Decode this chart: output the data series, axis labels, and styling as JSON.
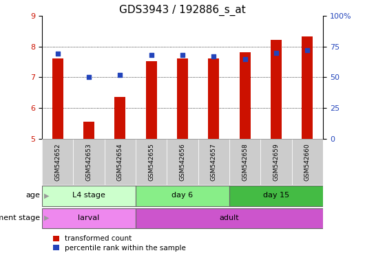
{
  "title": "GDS3943 / 192886_s_at",
  "samples": [
    "GSM542652",
    "GSM542653",
    "GSM542654",
    "GSM542655",
    "GSM542656",
    "GSM542657",
    "GSM542658",
    "GSM542659",
    "GSM542660"
  ],
  "transformed_count": [
    7.62,
    5.55,
    6.35,
    7.52,
    7.62,
    7.62,
    7.82,
    8.22,
    8.32
  ],
  "percentile_rank": [
    69,
    50,
    52,
    68,
    68,
    67,
    65,
    70,
    72
  ],
  "ylim_left": [
    5,
    9
  ],
  "ylim_right": [
    0,
    100
  ],
  "yticks_left": [
    5,
    6,
    7,
    8,
    9
  ],
  "yticks_right": [
    0,
    25,
    50,
    75,
    100
  ],
  "ytick_labels_left": [
    "5",
    "6",
    "7",
    "8",
    "9"
  ],
  "ytick_labels_right": [
    "0",
    "25",
    "50",
    "75",
    "100%"
  ],
  "bar_color": "#cc1100",
  "dot_color": "#2244bb",
  "age_groups": [
    {
      "label": "L4 stage",
      "start": 0,
      "end": 3,
      "color": "#ccffcc"
    },
    {
      "label": "day 6",
      "start": 3,
      "end": 6,
      "color": "#88ee88"
    },
    {
      "label": "day 15",
      "start": 6,
      "end": 9,
      "color": "#44bb44"
    }
  ],
  "dev_groups": [
    {
      "label": "larval",
      "start": 0,
      "end": 3,
      "color": "#ee88ee"
    },
    {
      "label": "adult",
      "start": 3,
      "end": 9,
      "color": "#cc55cc"
    }
  ],
  "age_label": "age",
  "dev_label": "development stage",
  "legend_bar_label": "transformed count",
  "legend_dot_label": "percentile rank within the sample",
  "background_color": "#ffffff",
  "tick_label_color_left": "#cc1100",
  "tick_label_color_right": "#2244bb",
  "sample_bg_color": "#cccccc",
  "title_fontsize": 11,
  "tick_fontsize": 8,
  "bar_width": 0.35
}
